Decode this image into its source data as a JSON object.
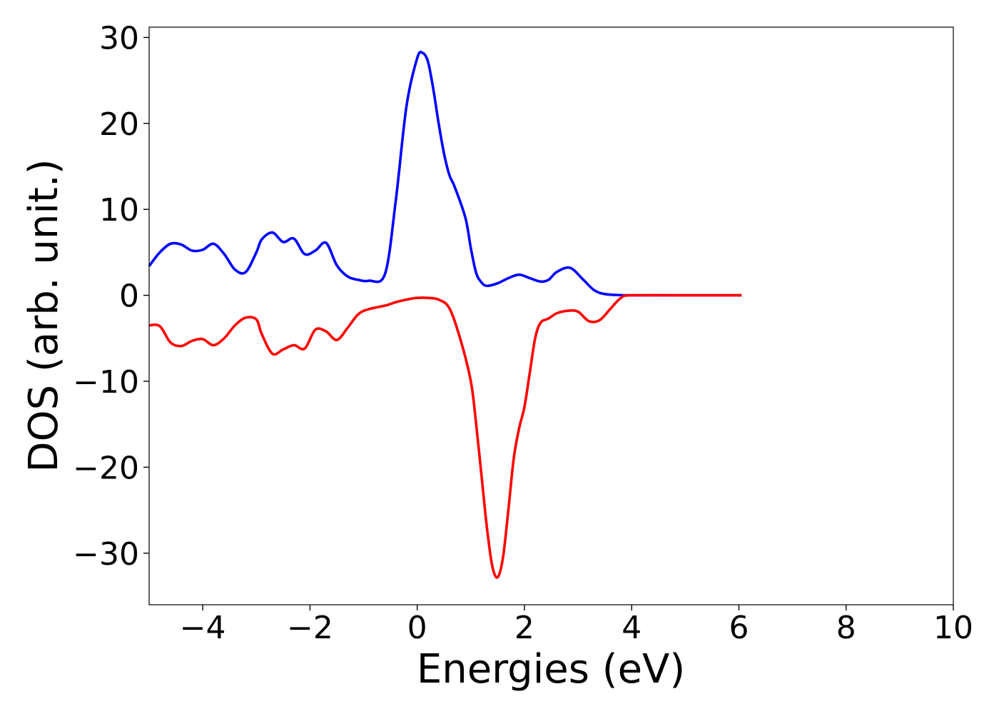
{
  "chart_data": {
    "type": "line",
    "title": "",
    "xlabel": "Energies (eV)",
    "ylabel": "DOS (arb. unit.)",
    "xlim": [
      -5,
      10
    ],
    "ylim": [
      -36,
      31.2
    ],
    "xticks": [
      -4,
      -2,
      0,
      2,
      4,
      6,
      8,
      10
    ],
    "yticks": [
      -30,
      -20,
      -10,
      0,
      10,
      20,
      30
    ],
    "xtick_labels": [
      "−4",
      "−2",
      "0",
      "2",
      "4",
      "6",
      "8",
      "10"
    ],
    "ytick_labels": [
      "−30",
      "−20",
      "−10",
      "0",
      "10",
      "20",
      "30"
    ],
    "grid": false,
    "series": [
      {
        "color": "#0000ff",
        "x": [
          -5.0,
          -4.8,
          -4.6,
          -4.4,
          -4.2,
          -4.0,
          -3.8,
          -3.6,
          -3.4,
          -3.2,
          -3.0,
          -2.9,
          -2.7,
          -2.5,
          -2.3,
          -2.1,
          -1.9,
          -1.7,
          -1.5,
          -1.3,
          -1.1,
          -0.9,
          -0.6,
          -0.4,
          -0.2,
          0.0,
          0.1,
          0.2,
          0.3,
          0.4,
          0.5,
          0.6,
          0.7,
          0.9,
          1.0,
          1.1,
          1.2,
          1.3,
          1.5,
          1.7,
          1.9,
          2.1,
          2.3,
          2.45,
          2.6,
          2.85,
          3.1,
          3.3,
          3.5,
          3.8,
          4.0,
          5.0,
          6.05
        ],
        "y": [
          3.4,
          5.0,
          6.0,
          5.9,
          5.2,
          5.3,
          6.0,
          4.8,
          3.0,
          2.7,
          5.0,
          6.5,
          7.3,
          6.2,
          6.6,
          4.8,
          5.2,
          6.1,
          3.5,
          2.2,
          1.8,
          1.7,
          2.5,
          11.0,
          22.0,
          27.6,
          28.2,
          27.2,
          24.0,
          20.0,
          16.5,
          14.0,
          12.6,
          9.0,
          5.5,
          2.6,
          1.5,
          1.1,
          1.4,
          2.0,
          2.4,
          2.0,
          1.6,
          1.8,
          2.7,
          3.2,
          1.8,
          0.6,
          0.15,
          0.02,
          0.0,
          0.0,
          0.0
        ]
      },
      {
        "color": "#ff0000",
        "x": [
          -5.0,
          -4.8,
          -4.6,
          -4.4,
          -4.2,
          -4.0,
          -3.8,
          -3.6,
          -3.4,
          -3.2,
          -3.0,
          -2.9,
          -2.7,
          -2.5,
          -2.3,
          -2.1,
          -1.9,
          -1.7,
          -1.5,
          -1.3,
          -1.1,
          -0.9,
          -0.6,
          -0.4,
          -0.2,
          0.0,
          0.2,
          0.4,
          0.6,
          0.8,
          1.0,
          1.1,
          1.2,
          1.3,
          1.4,
          1.5,
          1.6,
          1.7,
          1.8,
          1.9,
          2.0,
          2.1,
          2.2,
          2.3,
          2.45,
          2.6,
          2.8,
          3.0,
          3.2,
          3.4,
          3.6,
          3.8,
          4.0,
          5.0,
          6.05
        ],
        "y": [
          -3.5,
          -3.6,
          -5.5,
          -5.9,
          -5.3,
          -5.1,
          -5.8,
          -5.0,
          -3.5,
          -2.6,
          -2.8,
          -4.5,
          -6.8,
          -6.3,
          -5.8,
          -6.2,
          -4.0,
          -4.2,
          -5.2,
          -3.8,
          -2.2,
          -1.6,
          -1.2,
          -0.8,
          -0.5,
          -0.3,
          -0.3,
          -0.5,
          -1.5,
          -5.0,
          -10.0,
          -15.0,
          -21.0,
          -27.0,
          -31.5,
          -32.8,
          -30.5,
          -25.0,
          -19.0,
          -15.5,
          -13.0,
          -9.0,
          -5.0,
          -3.2,
          -2.7,
          -2.1,
          -1.8,
          -1.9,
          -3.0,
          -2.9,
          -1.6,
          -0.3,
          0.0,
          0.0,
          0.0
        ]
      }
    ]
  }
}
